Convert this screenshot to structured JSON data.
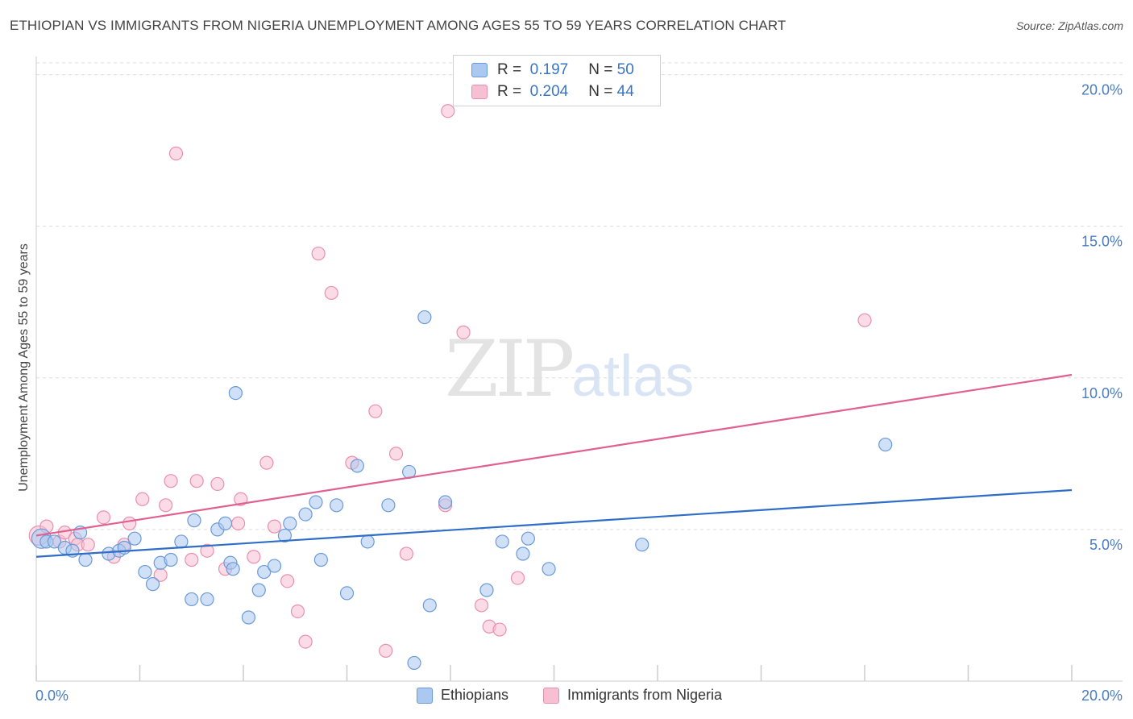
{
  "header": {
    "title": "ETHIOPIAN VS IMMIGRANTS FROM NIGERIA UNEMPLOYMENT AMONG AGES 55 TO 59 YEARS CORRELATION CHART",
    "source": "Source: ZipAtlas.com"
  },
  "watermark": {
    "zip": "ZIP",
    "atlas": "atlas"
  },
  "legend": {
    "rows": [
      {
        "r_label": "R =",
        "r_value": "0.197",
        "n_label": "N =",
        "n_value": "50"
      },
      {
        "r_label": "R =",
        "r_value": "0.204",
        "n_label": "N =",
        "n_value": "44"
      }
    ]
  },
  "colors": {
    "ethiopian_fill": "#aac8f0",
    "ethiopian_stroke": "#6a9ad8",
    "ethiopian_line": "#2f6ec6",
    "nigeria_fill": "#f7bfd2",
    "nigeria_stroke": "#ea8fae",
    "nigeria_line": "#e06090",
    "grid": "#dddddd",
    "tick_text": "#4a7cc4"
  },
  "chart_data": {
    "type": "scatter",
    "title": "ETHIOPIAN VS IMMIGRANTS FROM NIGERIA UNEMPLOYMENT AMONG AGES 55 TO 59 YEARS CORRELATION CHART",
    "xlabel": "",
    "ylabel": "Unemployment Among Ages 55 to 59 years",
    "xlim": [
      0,
      20
    ],
    "ylim": [
      0,
      20.6
    ],
    "x_tick_labels": [
      "0.0%",
      "20.0%"
    ],
    "y_ticks": [
      5,
      10,
      15,
      20
    ],
    "y_tick_labels": [
      "5.0%",
      "10.0%",
      "15.0%",
      "20.0%"
    ],
    "grid": true,
    "legend_position": "top-center",
    "series": [
      {
        "name": "Ethiopians",
        "trend": {
          "x": [
            0,
            20
          ],
          "y": [
            4.1,
            6.3
          ]
        },
        "points": [
          [
            0.1,
            4.7
          ],
          [
            0.2,
            4.6
          ],
          [
            0.35,
            4.6
          ],
          [
            0.55,
            4.4
          ],
          [
            0.7,
            4.3
          ],
          [
            0.85,
            4.9
          ],
          [
            0.95,
            4.0
          ],
          [
            1.4,
            4.2
          ],
          [
            1.6,
            4.3
          ],
          [
            1.7,
            4.4
          ],
          [
            1.9,
            4.7
          ],
          [
            2.1,
            3.6
          ],
          [
            2.25,
            3.2
          ],
          [
            2.4,
            3.9
          ],
          [
            2.6,
            4.0
          ],
          [
            2.8,
            4.6
          ],
          [
            3.0,
            2.7
          ],
          [
            3.05,
            5.3
          ],
          [
            3.3,
            2.7
          ],
          [
            3.5,
            5.0
          ],
          [
            3.65,
            5.2
          ],
          [
            3.75,
            3.9
          ],
          [
            3.8,
            3.7
          ],
          [
            3.85,
            9.5
          ],
          [
            4.1,
            2.1
          ],
          [
            4.3,
            3.0
          ],
          [
            4.4,
            3.6
          ],
          [
            4.6,
            3.8
          ],
          [
            4.8,
            4.8
          ],
          [
            4.9,
            5.2
          ],
          [
            5.2,
            5.5
          ],
          [
            5.4,
            5.9
          ],
          [
            5.5,
            4.0
          ],
          [
            5.8,
            5.8
          ],
          [
            6.0,
            2.9
          ],
          [
            6.2,
            7.1
          ],
          [
            6.4,
            4.6
          ],
          [
            6.8,
            5.8
          ],
          [
            7.2,
            6.9
          ],
          [
            7.3,
            0.6
          ],
          [
            7.5,
            12.0
          ],
          [
            7.6,
            2.5
          ],
          [
            7.9,
            5.9
          ],
          [
            8.7,
            3.0
          ],
          [
            9.0,
            4.6
          ],
          [
            9.4,
            4.2
          ],
          [
            9.5,
            4.7
          ],
          [
            9.9,
            3.7
          ],
          [
            11.7,
            4.5
          ],
          [
            16.4,
            7.8
          ]
        ]
      },
      {
        "name": "Immigrants from Nigeria",
        "trend": {
          "x": [
            0,
            20
          ],
          "y": [
            4.8,
            10.1
          ]
        },
        "points": [
          [
            0.05,
            4.8
          ],
          [
            0.2,
            5.1
          ],
          [
            0.45,
            4.6
          ],
          [
            0.55,
            4.9
          ],
          [
            0.75,
            4.7
          ],
          [
            0.8,
            4.5
          ],
          [
            1.0,
            4.5
          ],
          [
            1.3,
            5.4
          ],
          [
            1.5,
            4.1
          ],
          [
            1.7,
            4.5
          ],
          [
            1.8,
            5.2
          ],
          [
            2.05,
            6.0
          ],
          [
            2.4,
            3.5
          ],
          [
            2.5,
            5.8
          ],
          [
            2.6,
            6.6
          ],
          [
            2.7,
            17.4
          ],
          [
            3.0,
            4.0
          ],
          [
            3.1,
            6.6
          ],
          [
            3.3,
            4.3
          ],
          [
            3.5,
            6.5
          ],
          [
            3.65,
            3.7
          ],
          [
            3.9,
            5.2
          ],
          [
            3.95,
            6.0
          ],
          [
            4.2,
            4.1
          ],
          [
            4.45,
            7.2
          ],
          [
            4.6,
            5.1
          ],
          [
            4.85,
            3.3
          ],
          [
            5.05,
            2.3
          ],
          [
            5.2,
            1.3
          ],
          [
            5.45,
            14.1
          ],
          [
            5.7,
            12.8
          ],
          [
            6.1,
            7.2
          ],
          [
            6.55,
            8.9
          ],
          [
            6.75,
            1.0
          ],
          [
            6.95,
            7.5
          ],
          [
            7.15,
            4.2
          ],
          [
            7.9,
            5.8
          ],
          [
            7.95,
            18.8
          ],
          [
            8.25,
            11.5
          ],
          [
            8.6,
            2.5
          ],
          [
            8.75,
            1.8
          ],
          [
            8.95,
            1.7
          ],
          [
            9.3,
            3.4
          ],
          [
            16.0,
            11.9
          ]
        ]
      }
    ]
  },
  "bottom_legend": {
    "items": [
      {
        "label": "Ethiopians"
      },
      {
        "label": "Immigrants from Nigeria"
      }
    ]
  }
}
